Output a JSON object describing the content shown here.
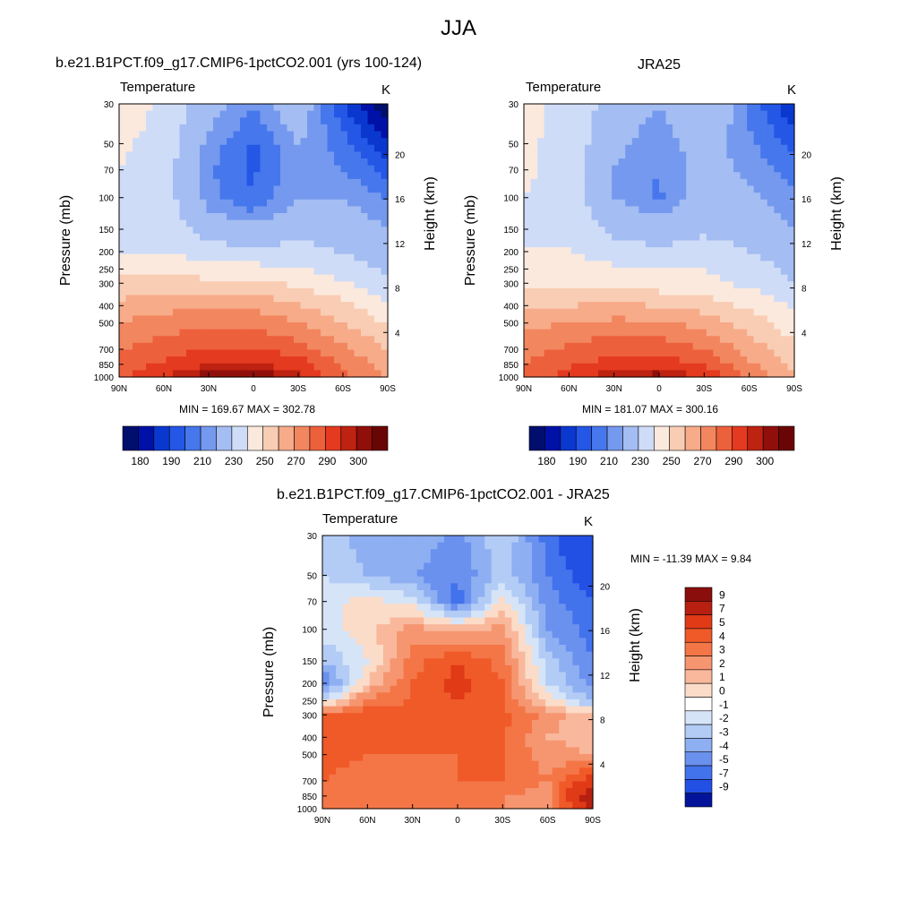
{
  "page": {
    "title": "JJA"
  },
  "panels": [
    {
      "title": "b.e21.B1PCT.f09_g17.CMIP6-1pctCO2.001 (yrs 100-124)",
      "variable": "Temperature",
      "units": "K",
      "stats": "MIN = 169.67  MAX = 302.78"
    },
    {
      "title": "JRA25",
      "variable": "Temperature",
      "units": "K",
      "stats": "MIN = 181.07  MAX = 300.16"
    },
    {
      "title": "b.e21.B1PCT.f09_g17.CMIP6-1pctCO2.001 - JRA25",
      "variable": "Temperature",
      "units": "K",
      "stats": "MIN = -11.39  MAX =   9.84"
    }
  ],
  "axes": {
    "ylabel_left": "Pressure (mb)",
    "ylabel_right": "Height (km)",
    "pressure_ticks": [
      30,
      50,
      70,
      100,
      150,
      200,
      250,
      300,
      400,
      500,
      700,
      850,
      1000
    ],
    "height_ticks": [
      4,
      8,
      12,
      16,
      20
    ],
    "lat_ticks": [
      "90N",
      "60N",
      "30N",
      "0",
      "30S",
      "60S",
      "90S"
    ]
  },
  "colorbars": {
    "abs": {
      "colors": [
        "#000e6e",
        "#0011a8",
        "#0a38cf",
        "#2457e6",
        "#4677ec",
        "#7599ee",
        "#a4bdf2",
        "#cfdcf7",
        "#fbe9dd",
        "#f9cdb4",
        "#f7ab89",
        "#f2865f",
        "#ed603c",
        "#e43a1f",
        "#be2211",
        "#900f0a",
        "#6a0505"
      ],
      "labels": [
        "180",
        "190",
        "210",
        "230",
        "250",
        "270",
        "290",
        "300"
      ]
    },
    "diff": {
      "colors": [
        "#8a0e0c",
        "#b72010",
        "#e03a17",
        "#f05a28",
        "#f47647",
        "#f69670",
        "#f9b89c",
        "#fbdcc8",
        "#ffffff",
        "#d6e4f8",
        "#b3ccf6",
        "#8eaff2",
        "#6b91ef",
        "#4272ec",
        "#2350e4",
        "#0c2ec8",
        "#03149a",
        "#020a7a"
      ],
      "labels": [
        "9",
        "7",
        "5",
        "4",
        "3",
        "2",
        "1",
        "0",
        "-1",
        "-2",
        "-3",
        "-4",
        "-5",
        "-7",
        "-9"
      ]
    }
  },
  "chart_data": [
    {
      "type": "heatmap",
      "title": "b.e21.B1PCT.f09_g17.CMIP6-1pctCO2.001 (yrs 100-124)",
      "variable": "Temperature",
      "units": "K",
      "xlabel": "",
      "ylabel": "Pressure (mb)",
      "y2label": "Height (km)",
      "x": [
        "90N",
        "60N",
        "30N",
        "0",
        "30S",
        "60S",
        "90S"
      ],
      "y_pressure_mb": [
        30,
        50,
        70,
        100,
        150,
        200,
        250,
        300,
        400,
        500,
        700,
        850,
        1000
      ],
      "values_K": [
        [
          236,
          228,
          214,
          206,
          216,
          196,
          180
        ],
        [
          232,
          226,
          208,
          199,
          210,
          202,
          190
        ],
        [
          230,
          224,
          206,
          199,
          210,
          205,
          198
        ],
        [
          229,
          224,
          207,
          200,
          210,
          210,
          204
        ],
        [
          229,
          227,
          215,
          212,
          216,
          215,
          210
        ],
        [
          230,
          230,
          224,
          222,
          224,
          219,
          214
        ],
        [
          236,
          236,
          234,
          233,
          232,
          225,
          218
        ],
        [
          243,
          244,
          243,
          242,
          238,
          231,
          222
        ],
        [
          253,
          256,
          258,
          257,
          251,
          243,
          232
        ],
        [
          261,
          265,
          268,
          267,
          261,
          250,
          238
        ],
        [
          269,
          275,
          281,
          281,
          275,
          262,
          250
        ],
        [
          274,
          282,
          290,
          290,
          285,
          268,
          256
        ],
        [
          277,
          290,
          300,
          302,
          292,
          272,
          258
        ]
      ],
      "min": 169.67,
      "max": 302.78,
      "colorbar_ticks": [
        180,
        190,
        210,
        230,
        250,
        270,
        290,
        300
      ]
    },
    {
      "type": "heatmap",
      "title": "JRA25",
      "variable": "Temperature",
      "units": "K",
      "xlabel": "",
      "ylabel": "Pressure (mb)",
      "y2label": "Height (km)",
      "x": [
        "90N",
        "60N",
        "30N",
        "0",
        "30S",
        "60S",
        "90S"
      ],
      "y_pressure_mb": [
        30,
        50,
        70,
        100,
        150,
        200,
        250,
        300,
        400,
        500,
        700,
        850,
        1000
      ],
      "values_K": [
        [
          234,
          226,
          216,
          210,
          220,
          204,
          190
        ],
        [
          232,
          226,
          212,
          206,
          214,
          206,
          198
        ],
        [
          232,
          226,
          210,
          205,
          214,
          208,
          202
        ],
        [
          230,
          226,
          210,
          204,
          214,
          212,
          206
        ],
        [
          230,
          228,
          217,
          214,
          218,
          216,
          210
        ],
        [
          230,
          231,
          224,
          222,
          224,
          220,
          214
        ],
        [
          234,
          234,
          232,
          230,
          230,
          225,
          218
        ],
        [
          238,
          239,
          236,
          234,
          232,
          228,
          220
        ],
        [
          246,
          250,
          251,
          250,
          245,
          238,
          228
        ],
        [
          256,
          261,
          263,
          262,
          256,
          246,
          234
        ],
        [
          266,
          272,
          277,
          276,
          270,
          256,
          242
        ],
        [
          270,
          278,
          285,
          285,
          279,
          262,
          246
        ],
        [
          274,
          285,
          296,
          299,
          288,
          268,
          250
        ]
      ],
      "min": 181.07,
      "max": 300.16,
      "colorbar_ticks": [
        180,
        190,
        210,
        230,
        250,
        270,
        290,
        300
      ]
    },
    {
      "type": "heatmap",
      "title": "b.e21.B1PCT.f09_g17.CMIP6-1pctCO2.001 - JRA25",
      "variable": "Temperature",
      "units": "K",
      "xlabel": "",
      "ylabel": "Pressure (mb)",
      "y2label": "Height (km)",
      "x": [
        "90N",
        "60N",
        "30N",
        "0",
        "30S",
        "60S",
        "90S"
      ],
      "y_pressure_mb": [
        30,
        50,
        70,
        100,
        150,
        200,
        250,
        300,
        400,
        500,
        700,
        850,
        1000
      ],
      "values_K": [
        [
          -1.5,
          -2.5,
          -2.0,
          -3.5,
          -1.0,
          -4.5,
          -7.0
        ],
        [
          -1.0,
          -2.0,
          -3.0,
          -4.0,
          -1.5,
          -4.0,
          -6.0
        ],
        [
          -0.5,
          0.5,
          -0.5,
          -4.5,
          0.5,
          -3.5,
          -5.0
        ],
        [
          -0.5,
          0.5,
          2.5,
          1.5,
          2.5,
          -3.0,
          -4.5
        ],
        [
          -2.0,
          0.0,
          3.5,
          5.0,
          3.5,
          -1.5,
          -4.0
        ],
        [
          -4.0,
          1.0,
          4.0,
          5.5,
          4.0,
          -1.0,
          -3.5
        ],
        [
          -1.0,
          3.5,
          4.0,
          5.0,
          4.0,
          0.5,
          -2.0
        ],
        [
          4.0,
          4.5,
          4.5,
          5.0,
          4.5,
          2.5,
          1.0
        ],
        [
          4.5,
          4.0,
          4.0,
          4.5,
          4.0,
          2.0,
          1.5
        ],
        [
          4.5,
          4.0,
          4.0,
          4.0,
          4.0,
          2.5,
          2.0
        ],
        [
          4.0,
          3.5,
          3.5,
          4.0,
          4.0,
          3.0,
          6.0
        ],
        [
          4.0,
          3.0,
          3.5,
          3.5,
          3.0,
          2.5,
          9.0
        ],
        [
          3.0,
          3.0,
          3.0,
          3.0,
          3.0,
          2.5,
          7.0
        ]
      ],
      "min": -11.39,
      "max": 9.84,
      "colorbar_ticks": [
        9,
        7,
        5,
        4,
        3,
        2,
        1,
        0,
        -1,
        -2,
        -3,
        -4,
        -5,
        -7,
        -9
      ]
    }
  ]
}
